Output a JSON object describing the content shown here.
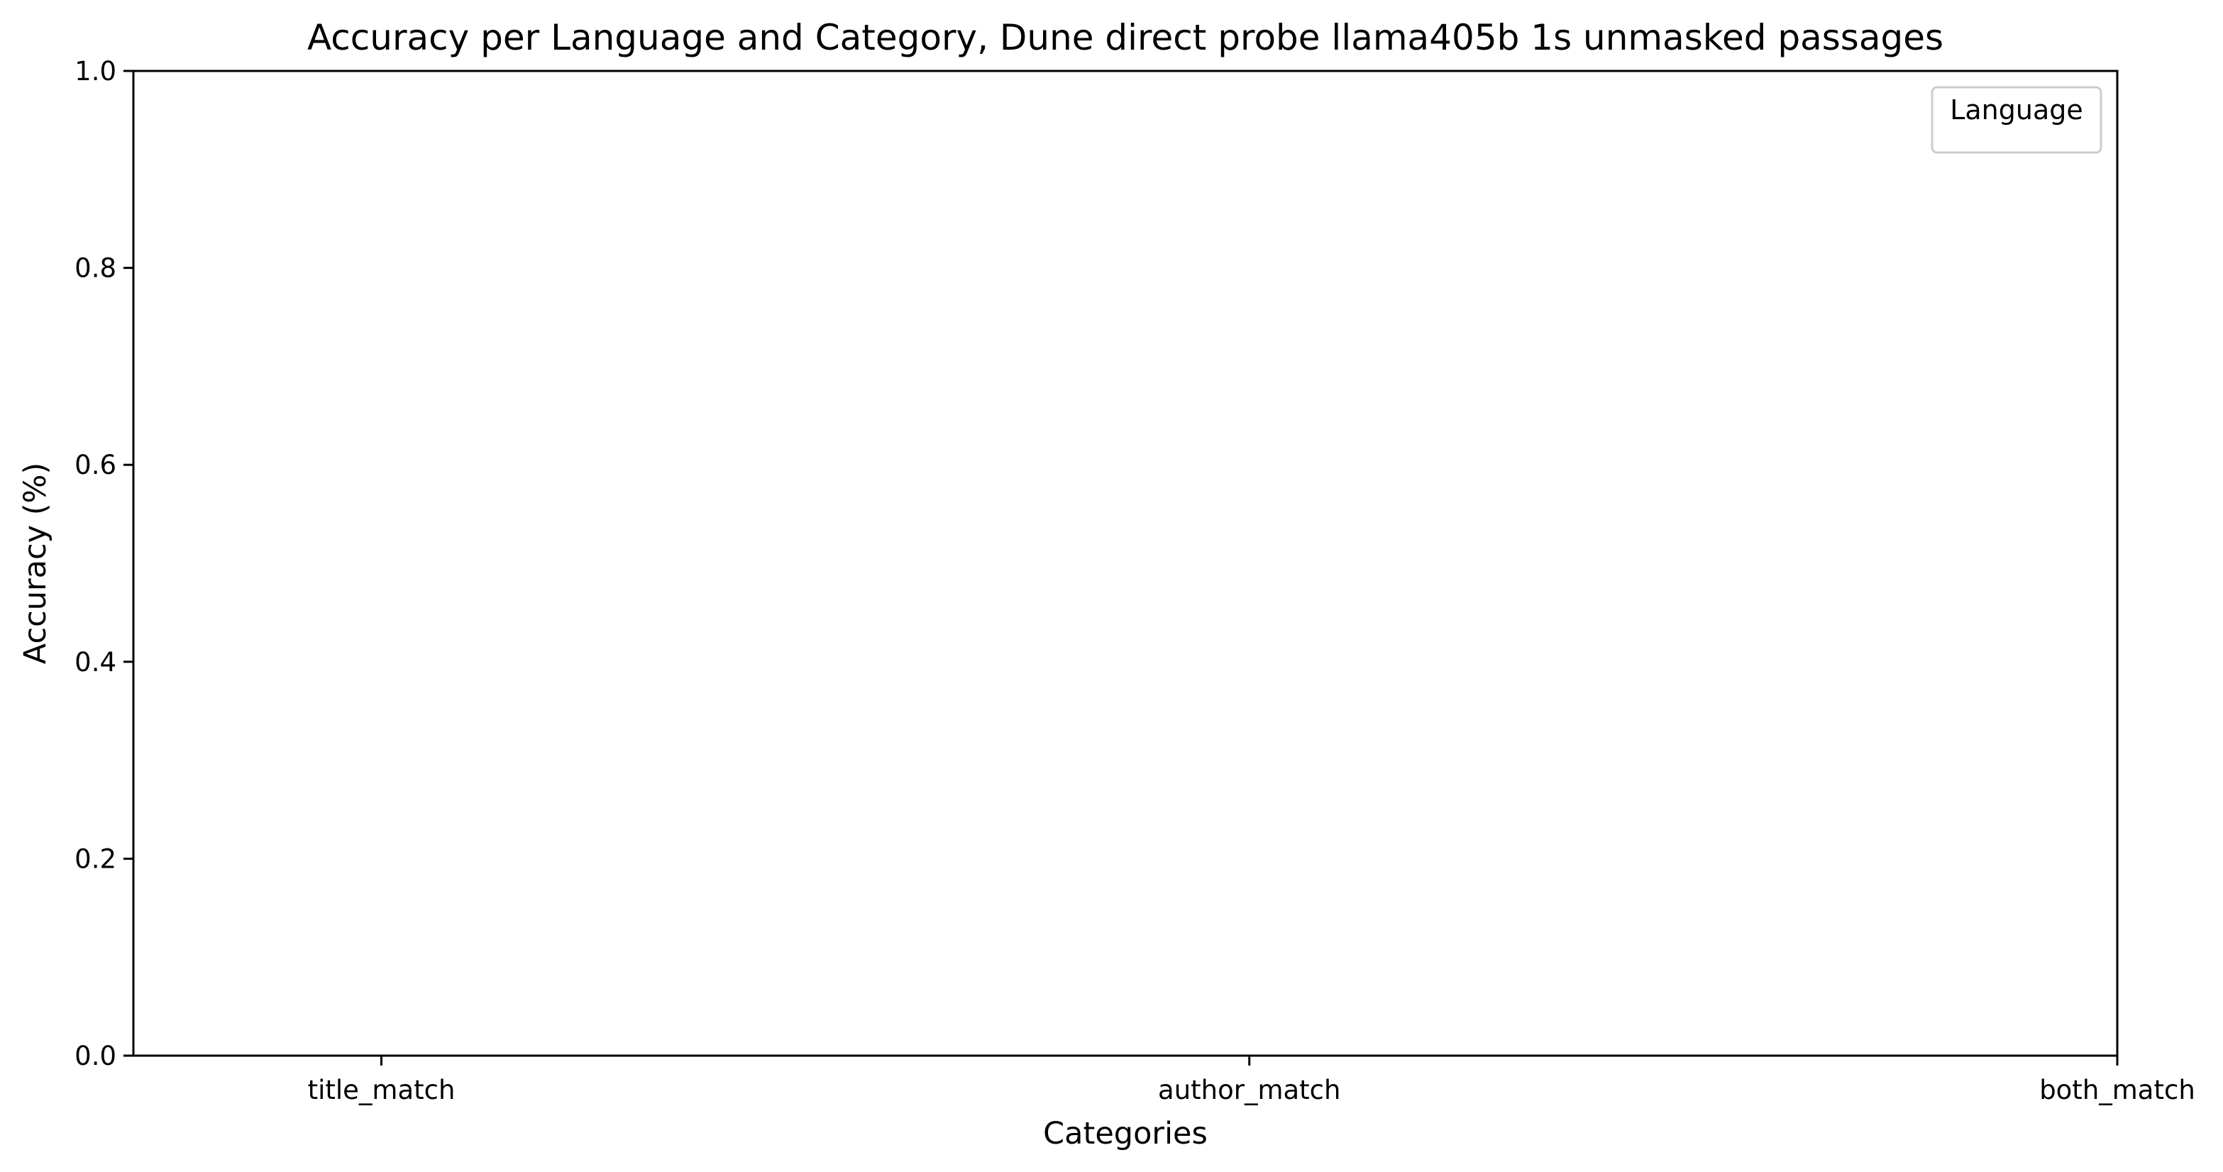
{
  "chart_data": {
    "type": "bar",
    "title": "Accuracy per Language and Category, Dune direct probe llama405b 1s unmasked passages",
    "xlabel": "Categories",
    "ylabel": "Accuracy (%)",
    "categories": [
      "title_match",
      "author_match",
      "both_match"
    ],
    "series": [],
    "ylim": [
      0,
      1.0
    ],
    "yticks": [
      "0.0",
      "0.2",
      "0.4",
      "0.6",
      "0.8",
      "1.0"
    ],
    "ytick_values": [
      0,
      0.2,
      0.4,
      0.6,
      0.8,
      1.0
    ],
    "legend": {
      "title": "Language",
      "placement": "top-right",
      "entries": []
    },
    "grid": false,
    "colors": {
      "axis": "#000000",
      "background": "#ffffff",
      "legend_border": "#cccccc"
    }
  }
}
